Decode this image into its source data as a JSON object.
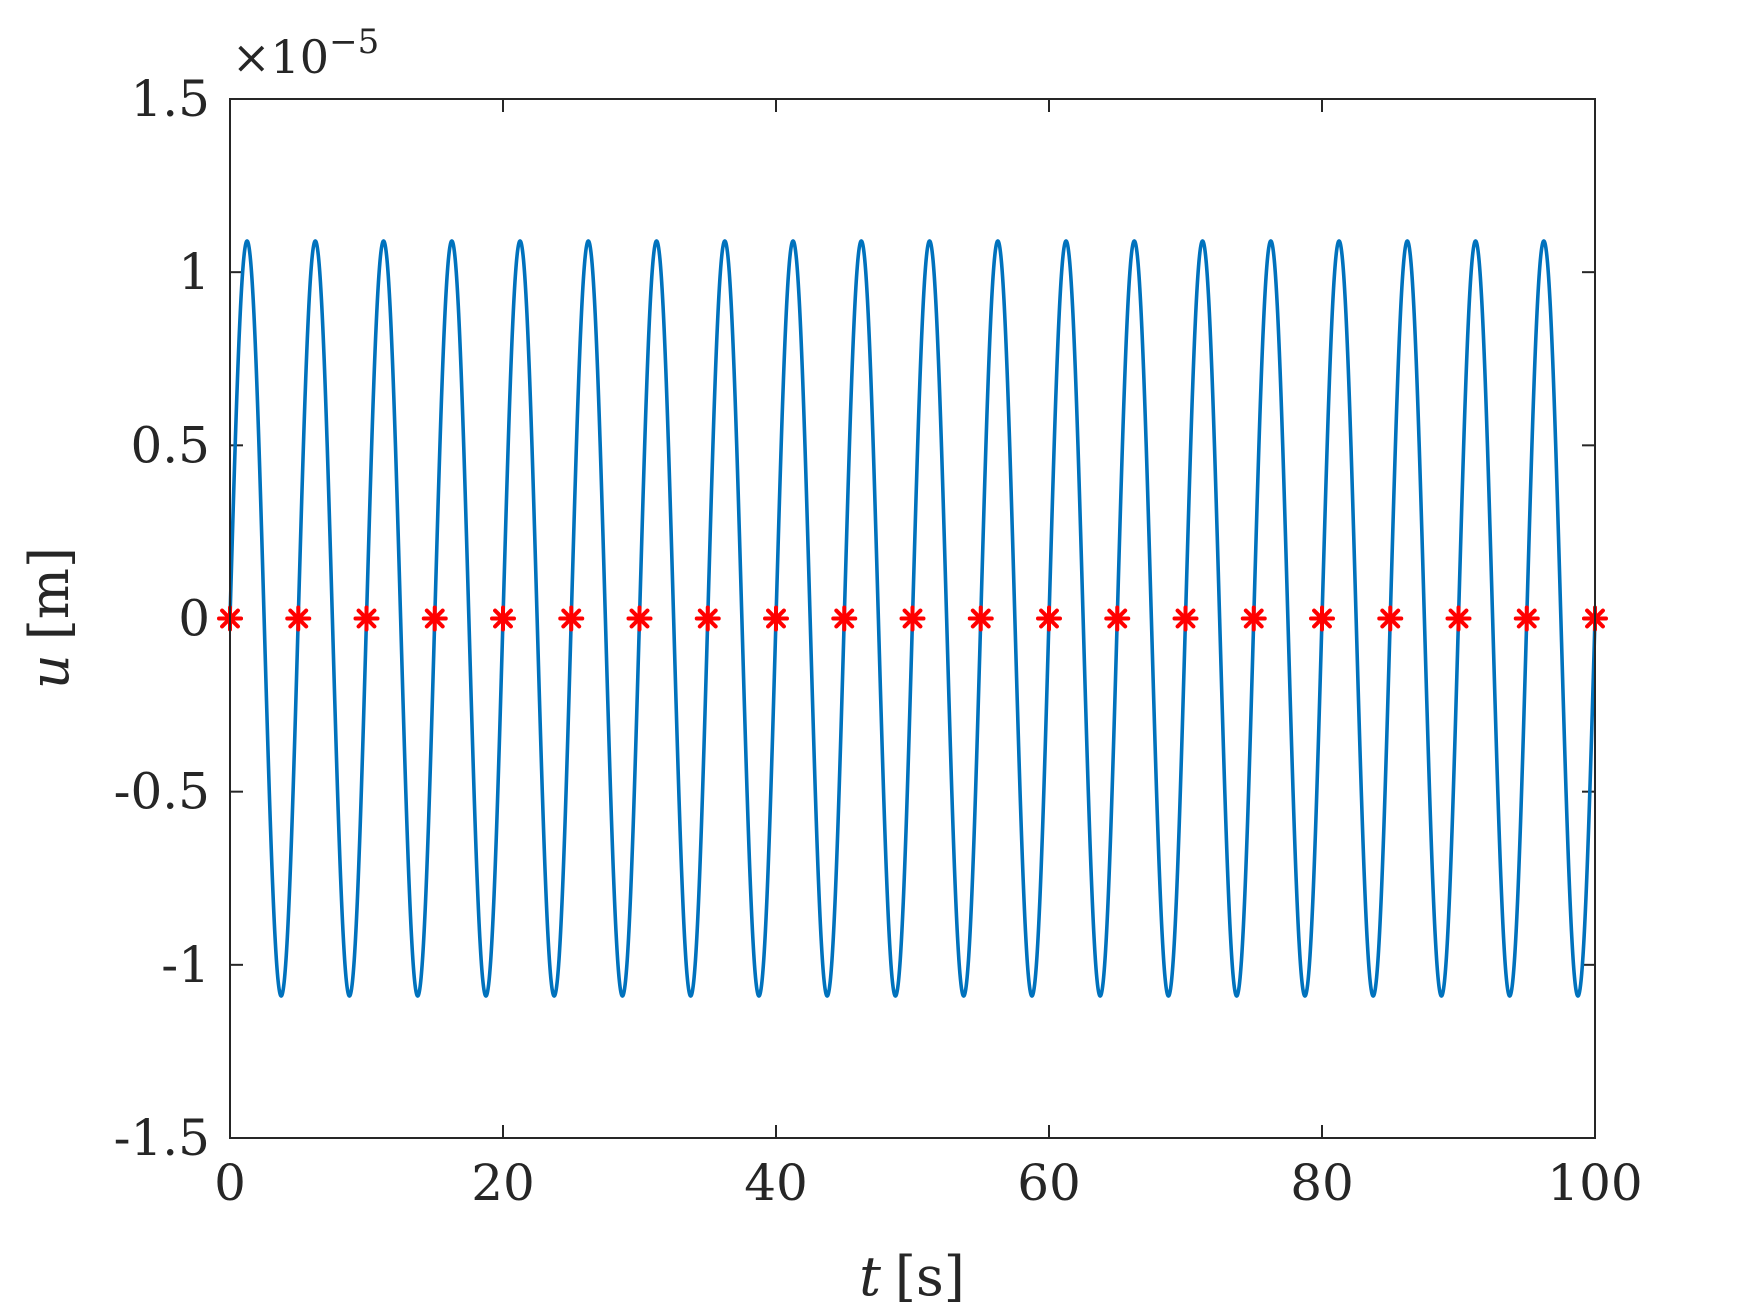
{
  "chart_data": {
    "type": "line",
    "xlabel_var": "t",
    "xlabel_unit": "[s]",
    "ylabel_var": "u",
    "ylabel_unit": "[m]",
    "y_exponent_prefix": "×10",
    "y_exponent_power": "−5",
    "xlim": [
      0,
      100
    ],
    "ylim": [
      -1.5,
      1.5
    ],
    "x_ticks": [
      0,
      20,
      40,
      60,
      80,
      100
    ],
    "y_ticks": [
      -1.5,
      -1,
      -0.5,
      0,
      0.5,
      1,
      1.5
    ],
    "x_tick_labels": [
      "0",
      "20",
      "40",
      "60",
      "80",
      "100"
    ],
    "y_tick_labels": [
      "-1.5",
      "-1",
      "-0.5",
      "0",
      "0.5",
      "1",
      "1.5"
    ],
    "grid": false,
    "series": [
      {
        "kind": "line",
        "color": "#0072BD",
        "function": "u(t) = 1.09 sin(2*pi*t/5)",
        "amplitude": 1.09,
        "period": 5
      },
      {
        "kind": "markers",
        "marker": "asterisk",
        "color": "#FF0000",
        "x": [
          0,
          5,
          10,
          15,
          20,
          25,
          30,
          35,
          40,
          45,
          50,
          55,
          60,
          65,
          70,
          75,
          80,
          85,
          90,
          95,
          100
        ],
        "y": [
          0,
          0,
          0,
          0,
          0,
          0,
          0,
          0,
          0,
          0,
          0,
          0,
          0,
          0,
          0,
          0,
          0,
          0,
          0,
          0,
          0
        ]
      }
    ]
  }
}
